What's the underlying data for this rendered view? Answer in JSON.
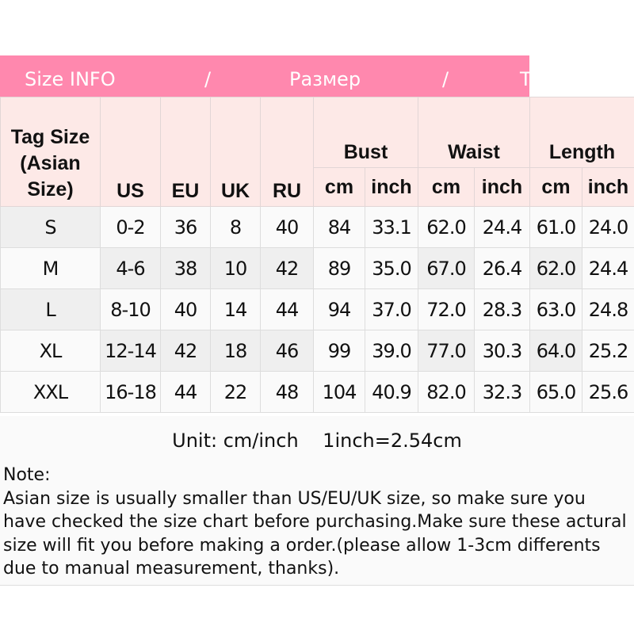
{
  "banner": {
    "part1": "Size INFO",
    "sep1": "/",
    "part2": "Размер",
    "sep2": "/",
    "part3": "T"
  },
  "header": {
    "tag_size": "Tag Size (Asian Size)",
    "us": "US",
    "eu": "EU",
    "uk": "UK",
    "ru": "RU",
    "bust": "Bust",
    "waist": "Waist",
    "length": "Length",
    "cm": "cm",
    "inch": "inch"
  },
  "rows": [
    [
      "S",
      "0-2",
      "36",
      "8",
      "40",
      "84",
      "33.1",
      "62.0",
      "24.4",
      "61.0",
      "24.0"
    ],
    [
      "M",
      "4-6",
      "38",
      "10",
      "42",
      "89",
      "35.0",
      "67.0",
      "26.4",
      "62.0",
      "24.4"
    ],
    [
      "L",
      "8-10",
      "40",
      "14",
      "44",
      "94",
      "37.0",
      "72.0",
      "28.3",
      "63.0",
      "24.8"
    ],
    [
      "XL",
      "12-14",
      "42",
      "18",
      "46",
      "99",
      "39.0",
      "77.0",
      "30.3",
      "64.0",
      "25.2"
    ],
    [
      "XXL",
      "16-18",
      "44",
      "22",
      "48",
      "104",
      "40.9",
      "82.0",
      "32.3",
      "65.0",
      "25.6"
    ]
  ],
  "unit": "Unit: cm/inch    1inch=2.54cm",
  "note": {
    "title": "Note:",
    "text": "Asian size is usually smaller than US/EU/UK size, so make sure you have checked the size chart before purchasing.Make sure these actural size will fit you before making a order.(please allow 1-3cm differents due to manual measurement, thanks)."
  },
  "colors": {
    "banner": "#ff88ae",
    "header_bg": "#fde9e7"
  }
}
